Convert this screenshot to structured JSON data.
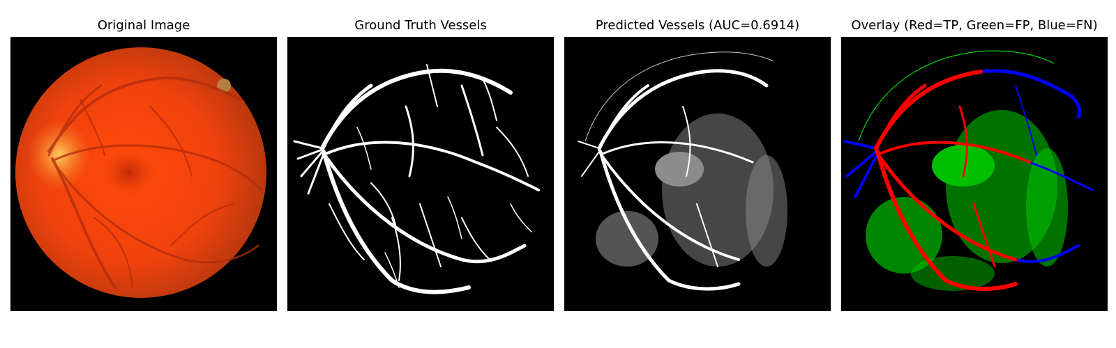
{
  "panels": [
    {
      "title": "Original Image"
    },
    {
      "title": "Ground Truth Vessels"
    },
    {
      "title": "Predicted Vessels (AUC=0.6914)"
    },
    {
      "title": "Overlay (Red=TP, Green=FP, Blue=FN)"
    }
  ],
  "colors": {
    "background": "#000000",
    "fundus": "#e64a10",
    "true_positive": "#ff0000",
    "false_positive": "#00ff00",
    "false_negative": "#0000ff",
    "vessel": "#ffffff"
  }
}
